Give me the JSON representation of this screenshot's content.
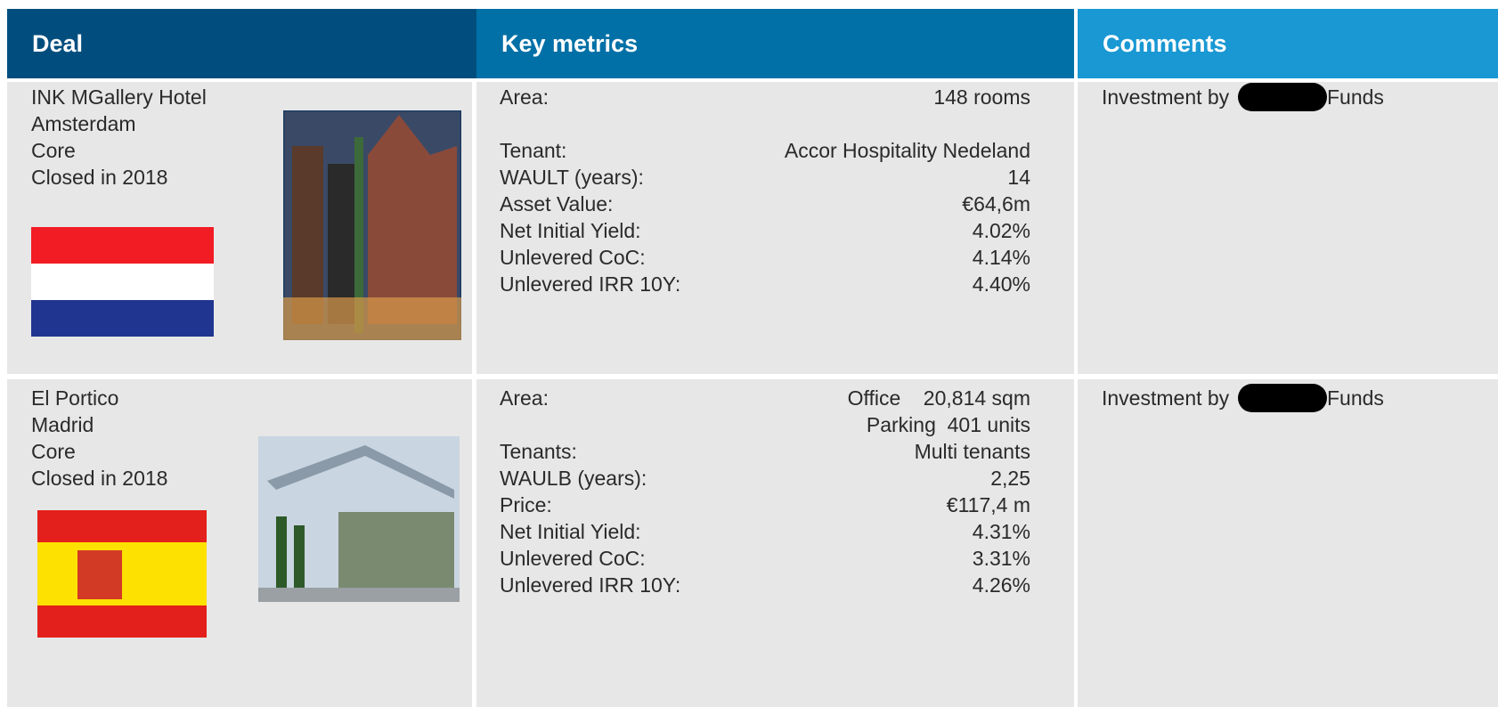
{
  "header": {
    "deal": "Deal",
    "key_metrics": "Key metrics",
    "comments": "Comments"
  },
  "rows": [
    {
      "deal": [
        "INK MGallery Hotel",
        "Amsterdam",
        "Core",
        "Closed in 2018"
      ],
      "metrics": [
        {
          "label": "Area:",
          "values": [
            "148 rooms"
          ]
        },
        {
          "label": "Tenant:",
          "values": [
            "Accor Hospitality Nedeland"
          ]
        },
        {
          "label": "WAULT (years):",
          "values": [
            "14"
          ]
        },
        {
          "label": "Asset Value:",
          "values": [
            "€64,6m"
          ]
        },
        {
          "label": "Net Initial Yield:",
          "values": [
            "4.02%"
          ]
        },
        {
          "label": "Unlevered CoC:",
          "values": [
            "4.14%"
          ]
        },
        {
          "label": "Unlevered IRR 10Y:",
          "values": [
            "4.40%"
          ]
        }
      ],
      "comment": [
        "Investment by",
        "Funds"
      ]
    },
    {
      "deal": [
        "El Portico",
        "Madrid",
        "Core",
        "Closed in 2018"
      ],
      "metrics": [
        {
          "label": "Area:",
          "values": [
            "Office    20,814 sqm",
            "Parking  401 units"
          ]
        },
        {
          "label": "Tenants:",
          "values": [
            "Multi tenants"
          ]
        },
        {
          "label": "WAULB (years):",
          "values": [
            "2,25"
          ]
        },
        {
          "label": "Price:",
          "values": [
            "€117,4 m"
          ]
        },
        {
          "label": "Net Initial Yield:",
          "values": [
            "4.31%"
          ]
        },
        {
          "label": "Unlevered CoC:",
          "values": [
            "3.31%"
          ]
        },
        {
          "label": "Unlevered IRR 10Y:",
          "values": [
            "4.26%"
          ]
        }
      ],
      "comment": [
        "Investment by",
        "Funds"
      ]
    }
  ]
}
